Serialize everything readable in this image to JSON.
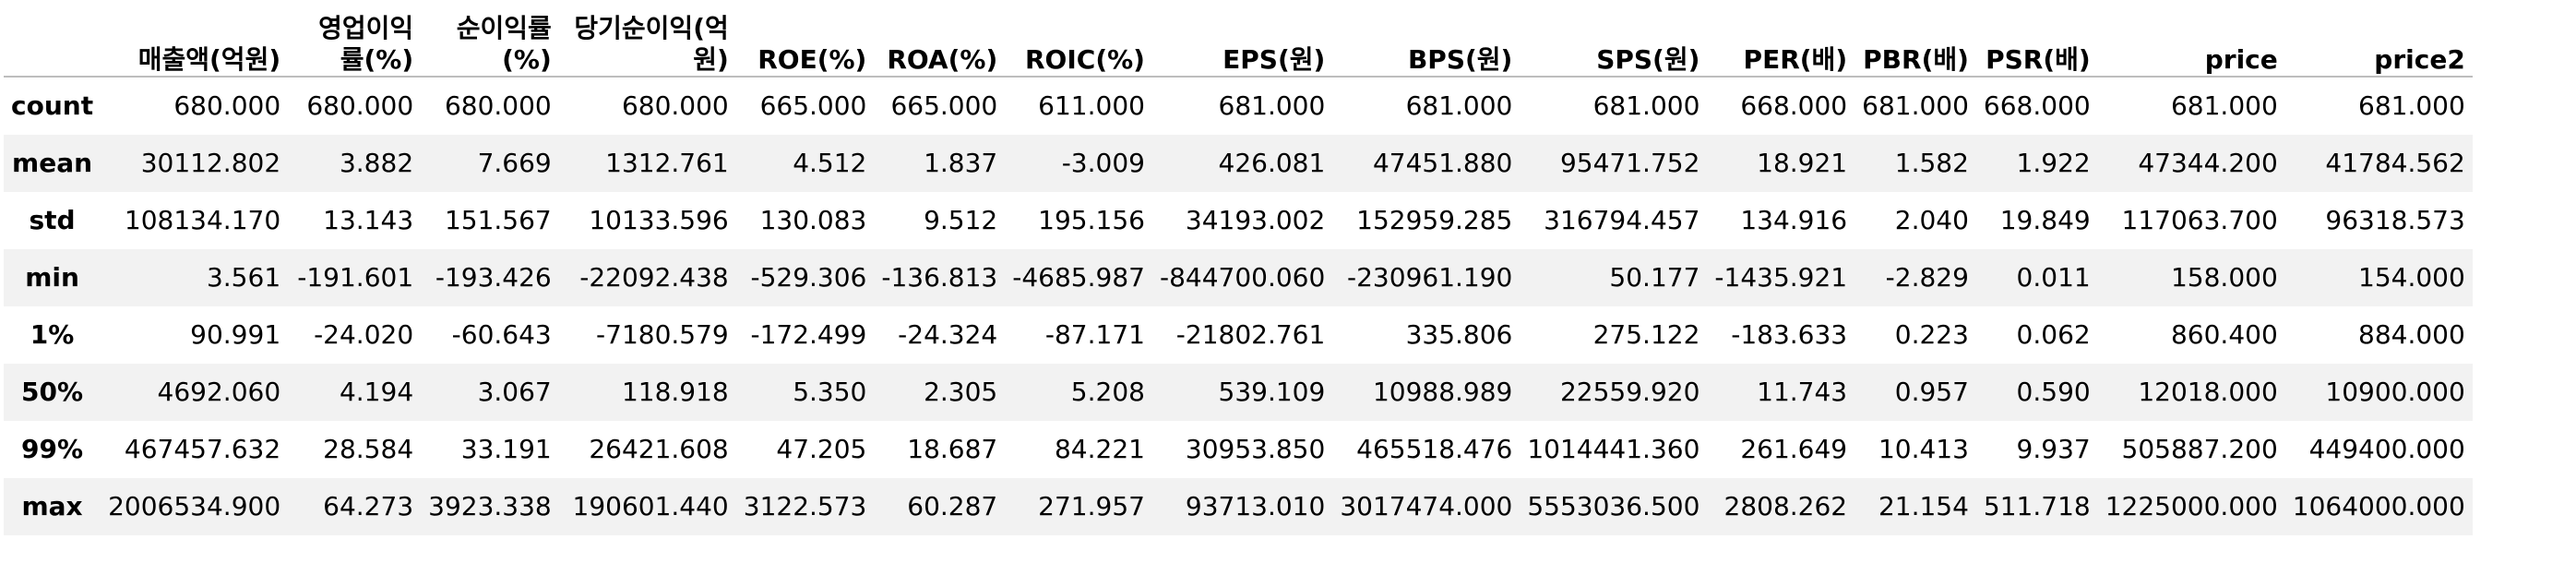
{
  "table": {
    "columns": [
      "",
      "매출액(억원)",
      "영업이익률(%)",
      "순이익률(%)",
      "당기순이익(억원)",
      "ROE(%)",
      "ROA(%)",
      "ROIC(%)",
      "EPS(원)",
      "BPS(원)",
      "SPS(원)",
      "PER(배)",
      "PBR(배)",
      "PSR(배)",
      "price",
      "price2"
    ],
    "rows": [
      {
        "label": "count",
        "cells": [
          "680.000",
          "680.000",
          "680.000",
          "680.000",
          "665.000",
          "665.000",
          "611.000",
          "681.000",
          "681.000",
          "681.000",
          "668.000",
          "681.000",
          "668.000",
          "681.000",
          "681.000"
        ]
      },
      {
        "label": "mean",
        "cells": [
          "30112.802",
          "3.882",
          "7.669",
          "1312.761",
          "4.512",
          "1.837",
          "-3.009",
          "426.081",
          "47451.880",
          "95471.752",
          "18.921",
          "1.582",
          "1.922",
          "47344.200",
          "41784.562"
        ]
      },
      {
        "label": "std",
        "cells": [
          "108134.170",
          "13.143",
          "151.567",
          "10133.596",
          "130.083",
          "9.512",
          "195.156",
          "34193.002",
          "152959.285",
          "316794.457",
          "134.916",
          "2.040",
          "19.849",
          "117063.700",
          "96318.573"
        ]
      },
      {
        "label": "min",
        "cells": [
          "3.561",
          "-191.601",
          "-193.426",
          "-22092.438",
          "-529.306",
          "-136.813",
          "-4685.987",
          "-844700.060",
          "-230961.190",
          "50.177",
          "-1435.921",
          "-2.829",
          "0.011",
          "158.000",
          "154.000"
        ]
      },
      {
        "label": "1%",
        "cells": [
          "90.991",
          "-24.020",
          "-60.643",
          "-7180.579",
          "-172.499",
          "-24.324",
          "-87.171",
          "-21802.761",
          "335.806",
          "275.122",
          "-183.633",
          "0.223",
          "0.062",
          "860.400",
          "884.000"
        ]
      },
      {
        "label": "50%",
        "cells": [
          "4692.060",
          "4.194",
          "3.067",
          "118.918",
          "5.350",
          "2.305",
          "5.208",
          "539.109",
          "10988.989",
          "22559.920",
          "11.743",
          "0.957",
          "0.590",
          "12018.000",
          "10900.000"
        ]
      },
      {
        "label": "99%",
        "cells": [
          "467457.632",
          "28.584",
          "33.191",
          "26421.608",
          "47.205",
          "18.687",
          "84.221",
          "30953.850",
          "465518.476",
          "1014441.360",
          "261.649",
          "10.413",
          "9.937",
          "505887.200",
          "449400.000"
        ]
      },
      {
        "label": "max",
        "cells": [
          "2006534.900",
          "64.273",
          "3923.338",
          "190601.440",
          "3122.573",
          "60.287",
          "271.957",
          "93713.010",
          "3017474.000",
          "5553036.500",
          "2808.262",
          "21.154",
          "511.718",
          "1225000.000",
          "1064000.000"
        ]
      }
    ]
  }
}
